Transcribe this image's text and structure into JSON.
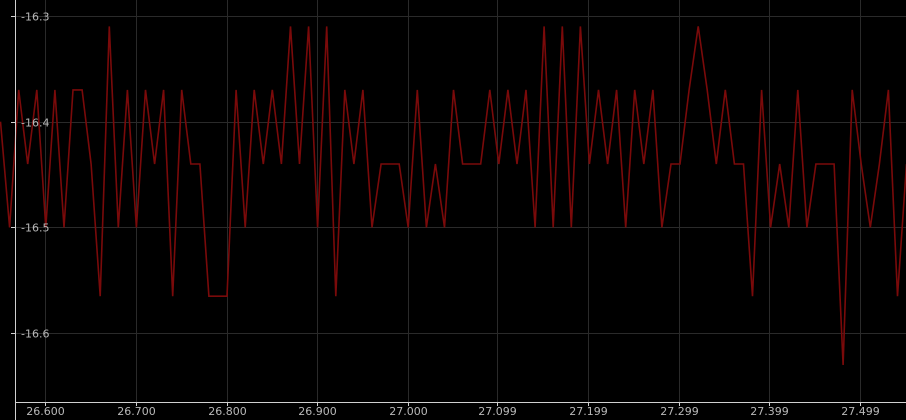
{
  "chart_data": {
    "type": "line",
    "title": "",
    "xlabel": "",
    "ylabel": "",
    "grid": true,
    "legend": "none",
    "xlim": [
      26.55,
      27.55
    ],
    "ylim": [
      -16.665,
      -16.285
    ],
    "x_ticks": [
      26.6,
      26.7,
      26.8,
      26.9,
      27.0,
      27.099,
      27.199,
      27.299,
      27.399,
      27.499
    ],
    "x_tick_labels": [
      "26.600",
      "26.700",
      "26.800",
      "26.900",
      "27.000",
      "27.099",
      "27.199",
      "27.299",
      "27.399",
      "27.499"
    ],
    "y_ticks": [
      -16.3,
      -16.4,
      -16.5,
      -16.6
    ],
    "y_tick_labels": [
      "-16.3",
      "-16.4",
      "-16.5",
      "-16.6"
    ],
    "colors": {
      "background": "#000000",
      "grid": "#2a2a2a",
      "axis": "#d0d0d0",
      "line": "#7a0a0a",
      "tick_text": "#b8b8b8"
    },
    "series": [
      {
        "name": "",
        "x": [
          26.5506,
          26.5606,
          26.5706,
          26.5806,
          26.5906,
          26.6006,
          26.6106,
          26.6206,
          26.6306,
          26.6406,
          26.6506,
          26.6606,
          26.6706,
          26.6806,
          26.6906,
          26.7006,
          26.7106,
          26.7206,
          26.7306,
          26.7406,
          26.7506,
          26.7606,
          26.7706,
          26.7806,
          26.7906,
          26.8006,
          26.8106,
          26.8206,
          26.8306,
          26.8406,
          26.8506,
          26.8606,
          26.8706,
          26.8806,
          26.8906,
          26.9006,
          26.9106,
          26.9206,
          26.9306,
          26.9406,
          26.9506,
          26.9606,
          26.9706,
          26.9806,
          26.9906,
          27.0006,
          27.0106,
          27.0206,
          27.0306,
          27.0406,
          27.0506,
          27.0606,
          27.0706,
          27.0806,
          27.0906,
          27.1006,
          27.1106,
          27.1206,
          27.1306,
          27.1406,
          27.1506,
          27.1606,
          27.1706,
          27.1806,
          27.1906,
          27.2006,
          27.2106,
          27.2206,
          27.2306,
          27.2406,
          27.2506,
          27.2606,
          27.2706,
          27.2806,
          27.2906,
          27.3006,
          27.3106,
          27.3206,
          27.3306,
          27.3406,
          27.3506,
          27.3606,
          27.3706,
          27.3806,
          27.3906,
          27.4006,
          27.4106,
          27.4206,
          27.4306,
          27.4406,
          27.4506,
          27.4606,
          27.4706,
          27.4806,
          27.4906,
          27.5006,
          27.5106,
          27.5206,
          27.5306,
          27.5406,
          27.5506
        ],
        "values": [
          -16.4,
          -16.5,
          -16.37,
          -16.44,
          -16.37,
          -16.5,
          -16.37,
          -16.5,
          -16.37,
          -16.37,
          -16.44,
          -16.565,
          -16.31,
          -16.5,
          -16.37,
          -16.5,
          -16.37,
          -16.44,
          -16.37,
          -16.565,
          -16.37,
          -16.44,
          -16.44,
          -16.565,
          -16.565,
          -16.565,
          -16.37,
          -16.5,
          -16.37,
          -16.44,
          -16.37,
          -16.44,
          -16.31,
          -16.44,
          -16.31,
          -16.5,
          -16.31,
          -16.565,
          -16.37,
          -16.44,
          -16.37,
          -16.5,
          -16.44,
          -16.44,
          -16.44,
          -16.5,
          -16.37,
          -16.5,
          -16.44,
          -16.5,
          -16.37,
          -16.44,
          -16.44,
          -16.44,
          -16.37,
          -16.44,
          -16.37,
          -16.44,
          -16.37,
          -16.5,
          -16.31,
          -16.5,
          -16.31,
          -16.5,
          -16.31,
          -16.44,
          -16.37,
          -16.44,
          -16.37,
          -16.5,
          -16.37,
          -16.44,
          -16.37,
          -16.5,
          -16.44,
          -16.44,
          -16.37,
          -16.31,
          -16.37,
          -16.44,
          -16.37,
          -16.44,
          -16.44,
          -16.565,
          -16.37,
          -16.5,
          -16.44,
          -16.5,
          -16.37,
          -16.5,
          -16.44,
          -16.44,
          -16.44,
          -16.63,
          -16.37,
          -16.44,
          -16.5,
          -16.44,
          -16.37,
          -16.565,
          -16.44
        ]
      }
    ]
  }
}
